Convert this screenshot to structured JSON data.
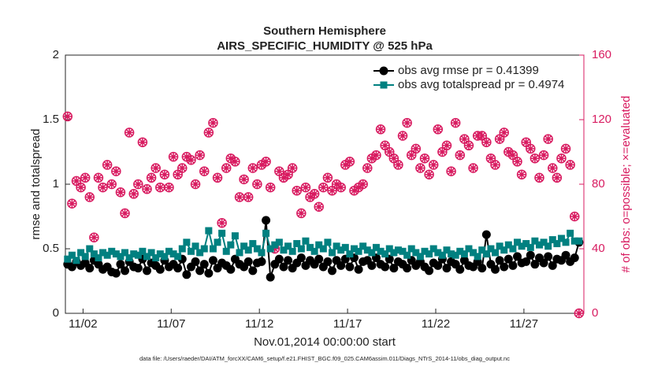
{
  "chart_data": {
    "type": "line",
    "title": "Southern Hemisphere",
    "subtitle": "AIRS_SPECIFIC_HUMIDITY @ 525 hPa",
    "xlabel": "Nov.01,2014 00:00:00 start",
    "ylabel": "rmse and totalspread",
    "y2label": "# of obs: o=possible; ×=evaluated",
    "footnote": "data file: /Users/raeder/DAI/ATM_forcXX/CAM6_setup/f.e21.FHIST_BGC.f09_025.CAM6assim.011/Diags_NTrS_2014-11/obs_diag_output.nc",
    "xlim": [
      1,
      30.4
    ],
    "xticks": [
      {
        "value": 2,
        "label": "11/02"
      },
      {
        "value": 7,
        "label": "11/07"
      },
      {
        "value": 12,
        "label": "11/12"
      },
      {
        "value": 17,
        "label": "11/17"
      },
      {
        "value": 22,
        "label": "11/22"
      },
      {
        "value": 27,
        "label": "11/27"
      }
    ],
    "ylim": [
      0,
      2
    ],
    "yticks": [
      0,
      0.5,
      1,
      1.5,
      2
    ],
    "y2lim": [
      0,
      160
    ],
    "y2ticks": [
      0,
      40,
      80,
      120,
      160
    ],
    "legend": "upper right",
    "x": [
      1.125,
      1.375,
      1.625,
      1.875,
      2.125,
      2.375,
      2.625,
      2.875,
      3.125,
      3.375,
      3.625,
      3.875,
      4.125,
      4.375,
      4.625,
      4.875,
      5.125,
      5.375,
      5.625,
      5.875,
      6.125,
      6.375,
      6.625,
      6.875,
      7.125,
      7.375,
      7.625,
      7.875,
      8.125,
      8.375,
      8.625,
      8.875,
      9.125,
      9.375,
      9.625,
      9.875,
      10.125,
      10.375,
      10.625,
      10.875,
      11.125,
      11.375,
      11.625,
      11.875,
      12.125,
      12.375,
      12.625,
      12.875,
      13.125,
      13.375,
      13.625,
      13.875,
      14.125,
      14.375,
      14.625,
      14.875,
      15.125,
      15.375,
      15.625,
      15.875,
      16.125,
      16.375,
      16.625,
      16.875,
      17.125,
      17.375,
      17.625,
      17.875,
      18.125,
      18.375,
      18.625,
      18.875,
      19.125,
      19.375,
      19.625,
      19.875,
      20.125,
      20.375,
      20.625,
      20.875,
      21.125,
      21.375,
      21.625,
      21.875,
      22.125,
      22.375,
      22.625,
      22.875,
      23.125,
      23.375,
      23.625,
      23.875,
      24.125,
      24.375,
      24.625,
      24.875,
      25.125,
      25.375,
      25.625,
      25.875,
      26.125,
      26.375,
      26.625,
      26.875,
      27.125,
      27.375,
      27.625,
      27.875,
      28.125,
      28.375,
      28.625,
      28.875,
      29.125,
      29.375,
      29.625,
      29.875,
      30.125
    ],
    "series": [
      {
        "name": "obs avg rmse pr = 0.41399",
        "color": "#000000",
        "marker": "circle",
        "values": [
          0.38,
          0.36,
          0.4,
          0.37,
          0.39,
          0.35,
          0.41,
          0.38,
          0.34,
          0.36,
          0.32,
          0.31,
          0.38,
          0.33,
          0.4,
          0.36,
          0.35,
          0.42,
          0.33,
          0.39,
          0.37,
          0.34,
          0.41,
          0.36,
          0.38,
          0.35,
          0.42,
          0.3,
          0.36,
          0.4,
          0.33,
          0.38,
          0.31,
          0.41,
          0.35,
          0.39,
          0.37,
          0.34,
          0.42,
          0.38,
          0.36,
          0.4,
          0.33,
          0.39,
          0.4,
          0.72,
          0.28,
          0.38,
          0.42,
          0.36,
          0.41,
          0.35,
          0.39,
          0.43,
          0.37,
          0.41,
          0.38,
          0.42,
          0.36,
          0.4,
          0.33,
          0.41,
          0.37,
          0.42,
          0.36,
          0.43,
          0.34,
          0.4,
          0.41,
          0.37,
          0.43,
          0.38,
          0.36,
          0.42,
          0.35,
          0.4,
          0.38,
          0.35,
          0.41,
          0.37,
          0.4,
          0.36,
          0.33,
          0.39,
          0.37,
          0.42,
          0.35,
          0.4,
          0.38,
          0.34,
          0.41,
          0.37,
          0.36,
          0.4,
          0.35,
          0.61,
          0.38,
          0.34,
          0.41,
          0.36,
          0.42,
          0.37,
          0.44,
          0.39,
          0.4,
          0.45,
          0.38,
          0.43,
          0.39,
          0.44,
          0.37,
          0.42,
          0.41,
          0.45,
          0.4,
          0.43,
          0.55
        ]
      },
      {
        "name": "obs avg totalspread pr = 0.4974",
        "color": "#008080",
        "marker": "square",
        "values": [
          0.42,
          0.45,
          0.41,
          0.47,
          0.44,
          0.5,
          0.46,
          0.43,
          0.47,
          0.45,
          0.48,
          0.46,
          0.44,
          0.47,
          0.43,
          0.46,
          0.45,
          0.48,
          0.44,
          0.47,
          0.43,
          0.46,
          0.44,
          0.48,
          0.46,
          0.44,
          0.5,
          0.55,
          0.48,
          0.52,
          0.47,
          0.5,
          0.64,
          0.5,
          0.55,
          0.62,
          0.48,
          0.53,
          0.6,
          0.47,
          0.52,
          0.49,
          0.54,
          0.5,
          0.47,
          0.62,
          0.5,
          0.53,
          0.55,
          0.49,
          0.52,
          0.48,
          0.54,
          0.5,
          0.56,
          0.51,
          0.48,
          0.53,
          0.5,
          0.55,
          0.47,
          0.52,
          0.49,
          0.51,
          0.46,
          0.5,
          0.48,
          0.52,
          0.49,
          0.47,
          0.51,
          0.48,
          0.46,
          0.5,
          0.47,
          0.49,
          0.48,
          0.45,
          0.5,
          0.47,
          0.44,
          0.48,
          0.46,
          0.5,
          0.47,
          0.45,
          0.49,
          0.46,
          0.45,
          0.48,
          0.46,
          0.5,
          0.47,
          0.44,
          0.49,
          0.46,
          0.5,
          0.47,
          0.52,
          0.49,
          0.53,
          0.5,
          0.55,
          0.52,
          0.54,
          0.51,
          0.56,
          0.53,
          0.55,
          0.52,
          0.57,
          0.54,
          0.58,
          0.55,
          0.62,
          0.56,
          0.56
        ]
      },
      {
        "color": "#d81b60",
        "marker": "open-circle",
        "axis": "y2",
        "values": [
          122,
          68,
          82,
          78,
          84,
          72,
          47,
          84,
          78,
          92,
          80,
          88,
          75,
          62,
          112,
          74,
          80,
          106,
          77,
          84,
          90,
          78,
          86,
          78,
          97,
          86,
          90,
          97,
          95,
          80,
          98,
          88,
          112,
          118,
          84,
          56,
          90,
          96,
          94,
          72,
          83,
          72,
          90,
          80,
          92,
          94,
          78,
          40,
          88,
          84,
          86,
          90,
          76,
          62,
          78,
          72,
          74,
          66,
          78,
          84,
          76,
          80,
          78,
          92,
          94,
          76,
          78,
          80,
          90,
          96,
          98,
          114,
          104,
          100,
          96,
          92,
          110,
          118,
          98,
          102,
          90,
          96,
          86,
          92,
          114,
          100,
          104,
          88,
          118,
          98,
          108,
          104,
          90,
          110,
          110,
          106,
          96,
          92,
          108,
          112,
          100,
          98,
          94,
          86,
          106,
          102,
          96,
          84,
          98,
          108,
          90,
          84,
          96,
          102,
          92,
          60,
          0
        ]
      },
      {
        "color": "#d81b60",
        "marker": "asterisk",
        "axis": "y2",
        "values": [
          122,
          68,
          82,
          78,
          84,
          72,
          47,
          84,
          78,
          92,
          80,
          88,
          75,
          62,
          112,
          74,
          80,
          106,
          77,
          84,
          90,
          78,
          86,
          78,
          97,
          86,
          90,
          97,
          95,
          80,
          98,
          88,
          112,
          118,
          84,
          56,
          90,
          96,
          94,
          72,
          83,
          72,
          90,
          80,
          92,
          94,
          78,
          40,
          88,
          84,
          86,
          90,
          76,
          62,
          78,
          72,
          74,
          66,
          78,
          84,
          76,
          80,
          78,
          92,
          94,
          76,
          78,
          80,
          90,
          96,
          98,
          114,
          104,
          100,
          96,
          92,
          110,
          118,
          98,
          102,
          90,
          96,
          86,
          92,
          114,
          100,
          104,
          88,
          118,
          98,
          108,
          104,
          90,
          110,
          110,
          106,
          96,
          92,
          108,
          112,
          100,
          98,
          94,
          86,
          106,
          102,
          96,
          84,
          98,
          108,
          90,
          84,
          96,
          102,
          92,
          60,
          0
        ]
      }
    ]
  }
}
